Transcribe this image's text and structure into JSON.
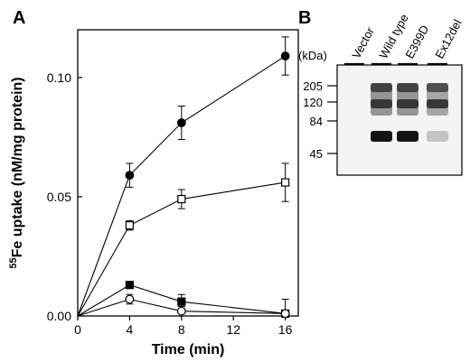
{
  "panels": {
    "a_label": "A",
    "b_label": "B"
  },
  "chart_data": [
    {
      "panel": "A",
      "type": "line",
      "title": "",
      "xlabel": "Time (min)",
      "ylabel_superscript": "55",
      "ylabel": "Fe uptake (nM/mg protein)",
      "xlim": [
        0,
        17
      ],
      "ylim": [
        0,
        0.12
      ],
      "x_ticks": [
        0,
        4,
        8,
        12,
        16
      ],
      "y_ticks": [
        {
          "value": 0,
          "label": "0.00"
        },
        {
          "value": 0.05,
          "label": "0.05"
        },
        {
          "value": 0.1,
          "label": "0.10"
        }
      ],
      "grid": false,
      "series": [
        {
          "marker": "filled-circle",
          "x": [
            0,
            4,
            8,
            16
          ],
          "y": [
            0,
            0.059,
            0.081,
            0.109
          ],
          "yerr": [
            0,
            0.005,
            0.007,
            0.008
          ]
        },
        {
          "marker": "open-square",
          "x": [
            0,
            4,
            8,
            16
          ],
          "y": [
            0,
            0.038,
            0.049,
            0.056
          ],
          "yerr": [
            0,
            0.002,
            0.004,
            0.008
          ]
        },
        {
          "marker": "filled-square",
          "x": [
            0,
            4,
            8,
            16
          ],
          "y": [
            0,
            0.013,
            0.006,
            0.001
          ],
          "yerr": [
            0,
            0.0,
            0.003,
            0.0
          ]
        },
        {
          "marker": "open-circle",
          "x": [
            0,
            4,
            8,
            16
          ],
          "y": [
            0,
            0.007,
            0.002,
            0.001
          ],
          "yerr": [
            0,
            0.002,
            0.002,
            0.006
          ]
        }
      ]
    }
  ],
  "blot": {
    "unit_label": "(kDa)",
    "lanes": [
      "Vector",
      "Wild type",
      "E399D",
      "Ex12del"
    ],
    "markers": [
      {
        "kda": "205",
        "bands": [
          0,
          0.8,
          0.8,
          0.75
        ]
      },
      {
        "kda": "120",
        "bands": [
          0,
          0.85,
          0.85,
          0.85
        ]
      },
      {
        "kda": "84",
        "bands": [
          0,
          0,
          0,
          0
        ]
      },
      {
        "kda": "45",
        "bands": [
          0,
          0,
          0,
          0
        ]
      }
    ],
    "band_65kda": [
      0,
      1,
      1,
      0.25
    ]
  }
}
